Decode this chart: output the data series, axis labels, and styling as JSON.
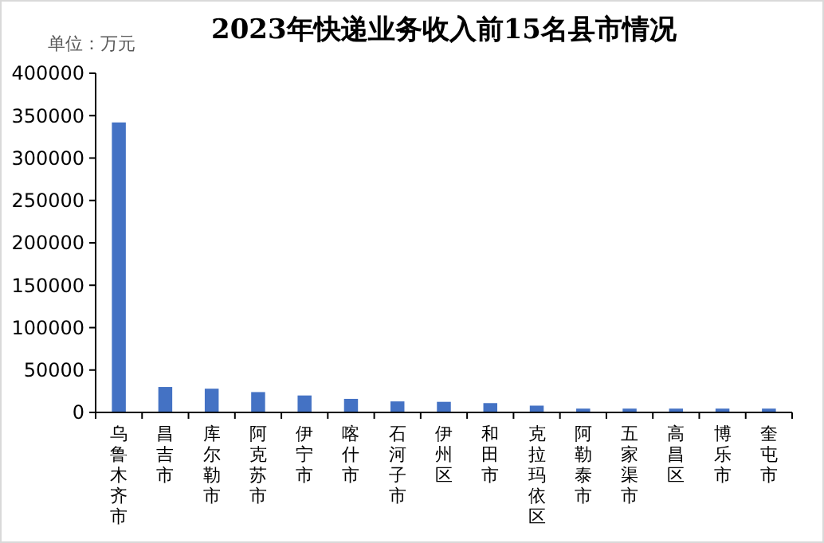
{
  "chart_data": {
    "type": "bar",
    "title": "2023年快递业务收入前15名县市情况",
    "ylabel": "单位：万元",
    "categories": [
      "乌鲁木齐市",
      "昌吉市",
      "库尔勒市",
      "阿克苏市",
      "伊宁市",
      "喀什市",
      "石河子市",
      "伊州区",
      "和田市",
      "克拉玛依区",
      "阿勒泰市",
      "五家渠市",
      "高昌区",
      "博乐市",
      "奎屯市"
    ],
    "values": [
      342000,
      30000,
      28000,
      24000,
      20000,
      16000,
      13000,
      12500,
      11000,
      8000,
      4500,
      4500,
      4500,
      4500,
      4500
    ],
    "color": "#4472c4",
    "ylim": [
      0,
      400000
    ],
    "yticks": [
      0,
      50000,
      100000,
      150000,
      200000,
      250000,
      300000,
      350000,
      400000
    ]
  }
}
